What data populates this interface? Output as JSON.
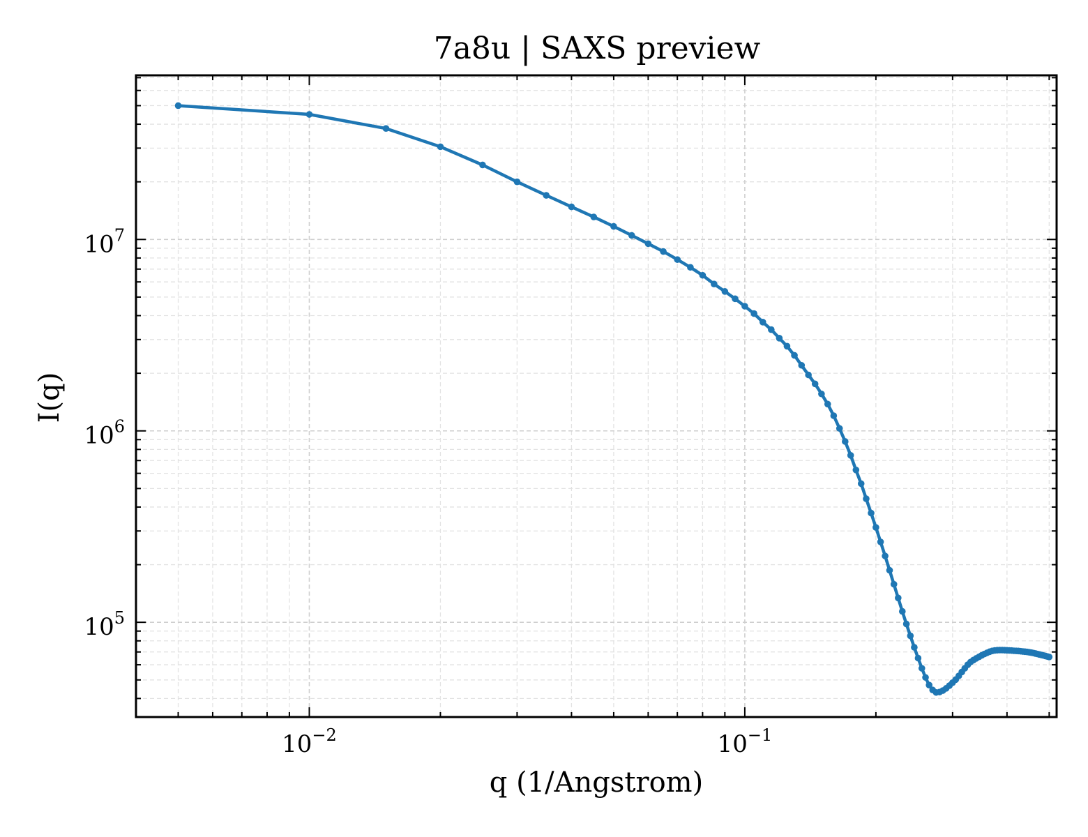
{
  "chart_data": {
    "type": "line",
    "title": "7a8u | SAXS preview",
    "xlabel": "q (1/Angstrom)",
    "ylabel": "I(q)",
    "xscale": "log",
    "yscale": "log",
    "xlim": [
      0.004,
      0.52
    ],
    "ylim": [
      32000,
      72000000
    ],
    "grid": true,
    "line_color": "#1f77b4",
    "x_ticks": [
      {
        "value": 0.01,
        "base": "10",
        "exp": "−2"
      },
      {
        "value": 0.1,
        "base": "10",
        "exp": "−1"
      }
    ],
    "y_ticks": [
      {
        "value": 100000,
        "base": "10",
        "exp": "5"
      },
      {
        "value": 1000000,
        "base": "10",
        "exp": "6"
      },
      {
        "value": 10000000,
        "base": "10",
        "exp": "7"
      }
    ],
    "series": [
      {
        "x": [
          0.005,
          0.01,
          0.015,
          0.02,
          0.025,
          0.03,
          0.035,
          0.04,
          0.045,
          0.05,
          0.055,
          0.06,
          0.065,
          0.07,
          0.075,
          0.08,
          0.085,
          0.09,
          0.095,
          0.1,
          0.105,
          0.11,
          0.115,
          0.12,
          0.125,
          0.13,
          0.135,
          0.14,
          0.145,
          0.15,
          0.155,
          0.16,
          0.165,
          0.17,
          0.175,
          0.18,
          0.185,
          0.19,
          0.195,
          0.2,
          0.205,
          0.21,
          0.215,
          0.22,
          0.225,
          0.23,
          0.235,
          0.24,
          0.245,
          0.25,
          0.255,
          0.26,
          0.265,
          0.27,
          0.275,
          0.28,
          0.285,
          0.29,
          0.295,
          0.3,
          0.305,
          0.31,
          0.315,
          0.32,
          0.325,
          0.33,
          0.335,
          0.34,
          0.345,
          0.35,
          0.355,
          0.36,
          0.365,
          0.37,
          0.375,
          0.38,
          0.385,
          0.39,
          0.395,
          0.4,
          0.405,
          0.41,
          0.415,
          0.42,
          0.425,
          0.43,
          0.435,
          0.44,
          0.445,
          0.45,
          0.455,
          0.46,
          0.465,
          0.47,
          0.475,
          0.48,
          0.485,
          0.49,
          0.495,
          0.5
        ],
        "y": [
          50000000,
          45000000,
          38000000,
          30500000,
          24500000,
          20000000,
          17000000,
          14800000,
          13100000,
          11700000,
          10500000,
          9500000,
          8650000,
          7850000,
          7150000,
          6500000,
          5850000,
          5350000,
          4900000,
          4480000,
          4100000,
          3700000,
          3380000,
          3050000,
          2770000,
          2480000,
          2200000,
          1960000,
          1760000,
          1560000,
          1380000,
          1200000,
          1030000,
          880000,
          745000,
          625000,
          530000,
          442000,
          372000,
          313000,
          263000,
          222000,
          187000,
          158000,
          134000,
          114000,
          98000,
          85000,
          74000,
          65000,
          57500,
          51500,
          47000,
          44300,
          43000,
          43200,
          44000,
          45200,
          46700,
          48400,
          50200,
          52500,
          55000,
          57500,
          60000,
          62000,
          63500,
          64800,
          66000,
          67200,
          68300,
          69300,
          70200,
          70900,
          71300,
          71500,
          71600,
          71600,
          71500,
          71400,
          71300,
          71200,
          71000,
          70900,
          70800,
          70600,
          70400,
          70200,
          70000,
          69700,
          69400,
          69100,
          68700,
          68300,
          67900,
          67500,
          67100,
          66700,
          66300,
          65900
        ]
      }
    ]
  }
}
